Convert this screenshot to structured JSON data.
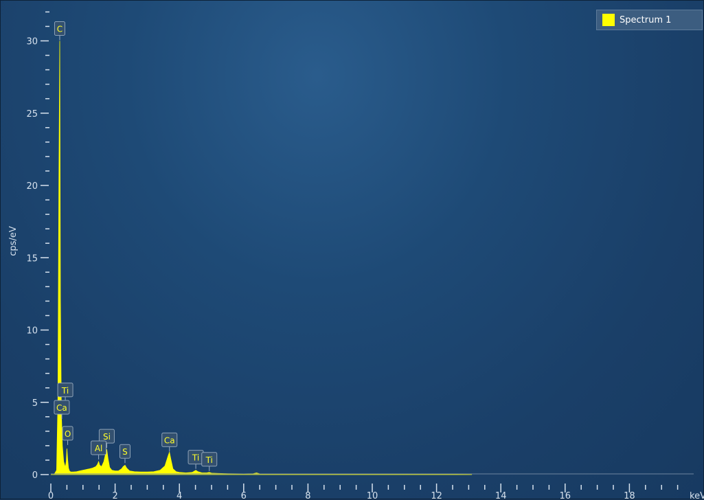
{
  "legend": {
    "label": "Spectrum 1",
    "color": "#ffff00"
  },
  "chart_data": {
    "type": "area",
    "ylabel": "cps/eV",
    "xlabel": "keV",
    "xlim": [
      0,
      20
    ],
    "ylim": [
      0,
      30
    ],
    "x_ticks": [
      0,
      2,
      4,
      6,
      8,
      10,
      12,
      14,
      16,
      18
    ],
    "y_ticks": [
      0,
      5,
      10,
      15,
      20,
      25,
      30
    ],
    "grid": false,
    "legend_position": "top-right",
    "series": [
      {
        "name": "Spectrum 1",
        "color": "#ffff00",
        "x": [
          0.0,
          0.1,
          0.18,
          0.22,
          0.25,
          0.277,
          0.3,
          0.33,
          0.36,
          0.4,
          0.45,
          0.48,
          0.5,
          0.525,
          0.55,
          0.58,
          0.62,
          0.7,
          0.8,
          0.9,
          1.0,
          1.1,
          1.2,
          1.3,
          1.4,
          1.45,
          1.487,
          1.52,
          1.58,
          1.65,
          1.7,
          1.74,
          1.78,
          1.83,
          1.9,
          2.0,
          2.1,
          2.2,
          2.25,
          2.307,
          2.36,
          2.45,
          2.6,
          2.8,
          3.0,
          3.2,
          3.4,
          3.55,
          3.65,
          3.691,
          3.73,
          3.8,
          3.9,
          4.0,
          4.2,
          4.4,
          4.45,
          4.51,
          4.58,
          4.7,
          4.85,
          4.93,
          5.0,
          5.2,
          5.5,
          6.0,
          6.3,
          6.4,
          6.5,
          6.8,
          7.5,
          8.5,
          10.0,
          11.5,
          13.1
        ],
        "y": [
          0.0,
          0.0,
          0.3,
          5.0,
          20.0,
          30.0,
          12.0,
          4.2,
          2.0,
          0.9,
          0.5,
          0.9,
          1.8,
          1.0,
          0.45,
          0.25,
          0.18,
          0.18,
          0.2,
          0.25,
          0.3,
          0.35,
          0.4,
          0.45,
          0.55,
          0.7,
          0.9,
          0.65,
          0.55,
          0.9,
          1.4,
          1.75,
          1.1,
          0.5,
          0.3,
          0.25,
          0.25,
          0.4,
          0.55,
          0.65,
          0.45,
          0.25,
          0.2,
          0.18,
          0.18,
          0.2,
          0.3,
          0.6,
          1.3,
          1.55,
          1.1,
          0.4,
          0.2,
          0.15,
          0.12,
          0.15,
          0.22,
          0.3,
          0.2,
          0.12,
          0.12,
          0.15,
          0.1,
          0.08,
          0.06,
          0.05,
          0.06,
          0.12,
          0.05,
          0.04,
          0.03,
          0.03,
          0.02,
          0.02,
          0.0
        ]
      }
    ],
    "annotations": [
      {
        "text": "C",
        "x": 0.277,
        "y": 30.0
      },
      {
        "text": "Ti",
        "x": 0.45,
        "y": 5.0
      },
      {
        "text": "Ca",
        "x": 0.34,
        "y": 3.8
      },
      {
        "text": "O",
        "x": 0.525,
        "y": 2.0
      },
      {
        "text": "Si",
        "x": 1.74,
        "y": 1.8
      },
      {
        "text": "Al",
        "x": 1.487,
        "y": 1.0
      },
      {
        "text": "S",
        "x": 2.307,
        "y": 0.75
      },
      {
        "text": "Ca",
        "x": 3.691,
        "y": 1.55
      },
      {
        "text": "Ti",
        "x": 4.51,
        "y": 0.35
      },
      {
        "text": "Ti",
        "x": 4.93,
        "y": 0.2
      }
    ]
  }
}
